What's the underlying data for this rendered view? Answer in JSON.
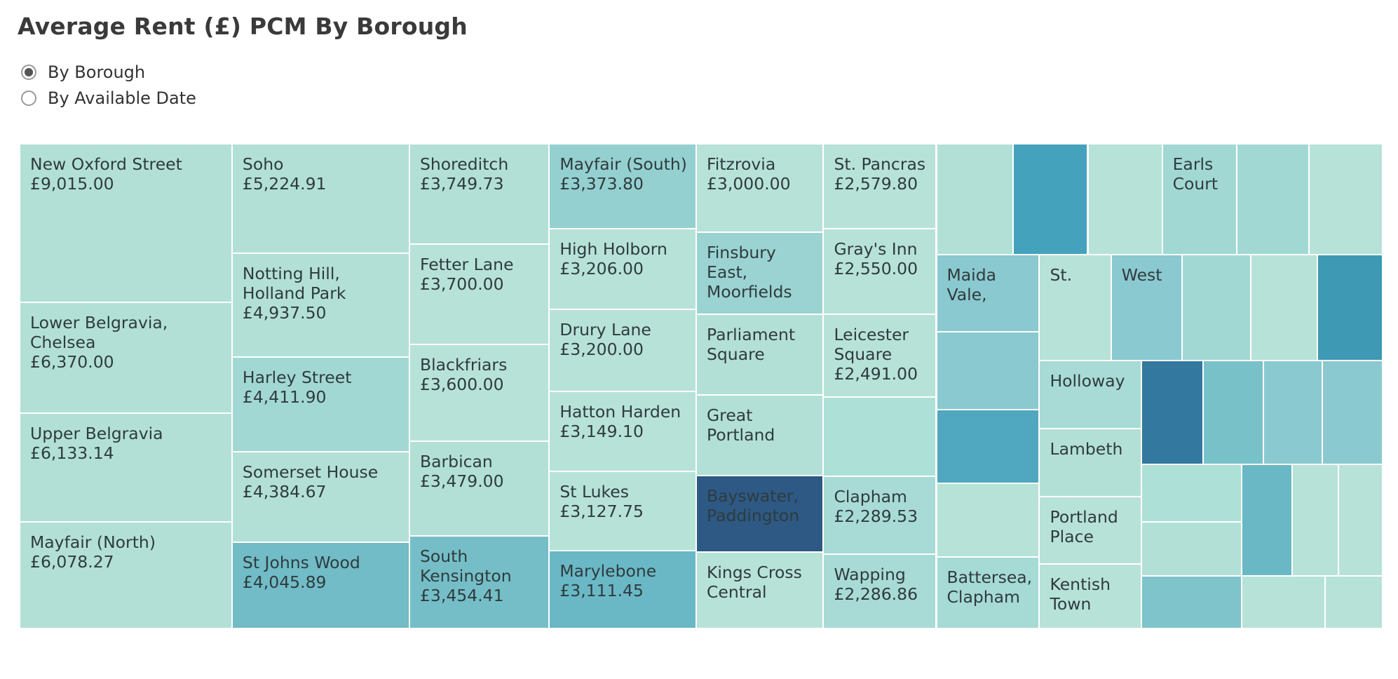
{
  "page": {
    "title": "Average Rent (£) PCM By Borough"
  },
  "view_toggle": {
    "options": [
      {
        "label": "By Borough",
        "selected": true
      },
      {
        "label": "By Available Date",
        "selected": false
      }
    ]
  },
  "chart_data": {
    "type": "treemap",
    "title": "Average Rent (£) PCM By Borough",
    "currency": "£",
    "color_scale": [
      "#bfe6dc",
      "#2d5984"
    ],
    "cells": [
      {
        "name": "New Oxford Street",
        "label": "New Oxford Street",
        "value": 9015.0,
        "value_text": "£9,015.00",
        "color": "#b2e0d6"
      },
      {
        "name": "Lower Belgravia, Chelsea",
        "label": "Lower Belgravia,\nChelsea",
        "value": 6370.0,
        "value_text": "£6,370.00",
        "color": "#b2e0d6"
      },
      {
        "name": "Upper Belgravia",
        "label": "Upper Belgravia",
        "value": 6133.14,
        "value_text": "£6,133.14",
        "color": "#b2e0d6"
      },
      {
        "name": "Mayfair (North)",
        "label": "Mayfair (North)",
        "value": 6078.27,
        "value_text": "£6,078.27",
        "color": "#b3e0d6"
      },
      {
        "name": "Soho",
        "label": "Soho",
        "value": 5224.91,
        "value_text": "£5,224.91",
        "color": "#b2e0d6"
      },
      {
        "name": "Notting Hill, Holland Park",
        "label": "Notting Hill,\nHolland Park",
        "value": 4937.5,
        "value_text": "£4,937.50",
        "color": "#b3e0d6"
      },
      {
        "name": "Harley Street",
        "label": "Harley Street",
        "value": 4411.9,
        "value_text": "£4,411.90",
        "color": "#a2d8d4"
      },
      {
        "name": "Somerset House",
        "label": "Somerset House",
        "value": 4384.67,
        "value_text": "£4,384.67",
        "color": "#b3e0d6"
      },
      {
        "name": "St Johns Wood",
        "label": "St Johns Wood",
        "value": 4045.89,
        "value_text": "£4,045.89",
        "color": "#71bcc6"
      },
      {
        "name": "Shoreditch",
        "label": "Shoreditch",
        "value": 3749.73,
        "value_text": "£3,749.73",
        "color": "#b2e0d6"
      },
      {
        "name": "Fetter Lane",
        "label": "Fetter Lane",
        "value": 3700.0,
        "value_text": "£3,700.00",
        "color": "#b7e2d8"
      },
      {
        "name": "Blackfriars",
        "label": "Blackfriars",
        "value": 3600.0,
        "value_text": "£3,600.00",
        "color": "#b7e2d8"
      },
      {
        "name": "Barbican",
        "label": "Barbican",
        "value": 3479.0,
        "value_text": "£3,479.00",
        "color": "#b2e0d6"
      },
      {
        "name": "South Kensington",
        "label": "South\nKensington",
        "value": 3454.41,
        "value_text": "£3,454.41",
        "color": "#75bec7"
      },
      {
        "name": "Mayfair (South)",
        "label": "Mayfair (South)",
        "value": 3373.8,
        "value_text": "£3,373.80",
        "color": "#95d0d0"
      },
      {
        "name": "High Holborn",
        "label": "High Holborn",
        "value": 3206.0,
        "value_text": "£3,206.00",
        "color": "#b7e2d8"
      },
      {
        "name": "Drury Lane",
        "label": "Drury Lane",
        "value": 3200.0,
        "value_text": "£3,200.00",
        "color": "#b7e2d8"
      },
      {
        "name": "Hatton Harden",
        "label": "Hatton Harden",
        "value": 3149.1,
        "value_text": "£3,149.10",
        "color": "#b7e2d8"
      },
      {
        "name": "St Lukes",
        "label": "St Lukes",
        "value": 3127.75,
        "value_text": "£3,127.75",
        "color": "#b7e2d8"
      },
      {
        "name": "Marylebone",
        "label": "Marylebone",
        "value": 3111.45,
        "value_text": "£3,111.45",
        "color": "#6ab8c5"
      },
      {
        "name": "Fitzrovia",
        "label": "Fitzrovia",
        "value": 3000.0,
        "value_text": "£3,000.00",
        "color": "#b7e2d8"
      },
      {
        "name": "Finsbury East, Moorfields",
        "label": "Finsbury\nEast,\nMoorfields",
        "value_text": "",
        "color": "#9ad3d2"
      },
      {
        "name": "Parliament Square",
        "label": "Parliament\nSquare",
        "value_text": "",
        "color": "#b3e0d6"
      },
      {
        "name": "Great Portland",
        "label": "Great\nPortland",
        "value_text": "",
        "color": "#b2e0d6"
      },
      {
        "name": "Bayswater, Paddington",
        "label": "Bayswater,\nPaddington",
        "value_text": "",
        "color": "#2d5984"
      },
      {
        "name": "Kings Cross Central",
        "label": "Kings Cross\nCentral",
        "value_text": "",
        "color": "#b7e2d8"
      },
      {
        "name": "St. Pancras",
        "label": "St. Pancras",
        "value": 2579.8,
        "value_text": "£2,579.80",
        "color": "#b7e2d8"
      },
      {
        "name": "Gray's Inn",
        "label": "Gray's Inn",
        "value": 2550.0,
        "value_text": "£2,550.00",
        "color": "#b7e2d8"
      },
      {
        "name": "Leicester Square",
        "label": "Leicester\nSquare",
        "value": 2491.0,
        "value_text": "£2,491.00",
        "color": "#b7e2d8"
      },
      {
        "name": "unlabeled-1",
        "label": "",
        "value_text": "",
        "color": "#ade0d6"
      },
      {
        "name": "Clapham",
        "label": "Clapham",
        "value": 2289.53,
        "value_text": "£2,289.53",
        "color": "#a8dbd5"
      },
      {
        "name": "Wapping",
        "label": "Wapping",
        "value": 2286.86,
        "value_text": "£2,286.86",
        "color": "#a8dbd5"
      },
      {
        "name": "unlabeled-2",
        "label": "",
        "value_text": "",
        "color": "#b2e0d6"
      },
      {
        "name": "unlabeled-3",
        "label": "",
        "value_text": "",
        "color": "#44a2bc"
      },
      {
        "name": "unlabeled-4",
        "label": "",
        "value_text": "",
        "color": "#b7e2d8"
      },
      {
        "name": "Earls Court",
        "label": "Earls\nCourt",
        "value_text": "",
        "color": "#a2d8d4"
      },
      {
        "name": "unlabeled-5",
        "label": "",
        "value_text": "",
        "color": "#a2d8d4"
      },
      {
        "name": "unlabeled-6",
        "label": "",
        "value_text": "",
        "color": "#b7e2d8"
      },
      {
        "name": "Maida Vale",
        "label": "Maida\nVale,",
        "value_text": "",
        "color": "#8ac9cf"
      },
      {
        "name": "unlabeled-7",
        "label": "",
        "value_text": "",
        "color": "#8ac9cf"
      },
      {
        "name": "unlabeled-8",
        "label": "",
        "value_text": "",
        "color": "#4fa7c0"
      },
      {
        "name": "unlabeled-9",
        "label": "",
        "value_text": "",
        "color": "#b7e2d8"
      },
      {
        "name": "Battersea, Clapham",
        "label": "Battersea,\nClapham",
        "value_text": "",
        "color": "#a6dad5"
      },
      {
        "name": "St.",
        "label": "St.",
        "value_text": "",
        "color": "#b7e2d8"
      },
      {
        "name": "West",
        "label": "West",
        "value_text": "",
        "color": "#8ac9cf"
      },
      {
        "name": "unlabeled-10",
        "label": "",
        "value_text": "",
        "color": "#a2d8d4"
      },
      {
        "name": "unlabeled-11",
        "label": "",
        "value_text": "",
        "color": "#b7e2d8"
      },
      {
        "name": "unlabeled-12",
        "label": "",
        "value_text": "",
        "color": "#3e99b5"
      },
      {
        "name": "Holloway",
        "label": "Holloway",
        "value_text": "",
        "color": "#a8dbd5"
      },
      {
        "name": "Lambeth",
        "label": "Lambeth",
        "value_text": "",
        "color": "#b3e0d6"
      },
      {
        "name": "Portland Place",
        "label": "Portland\nPlace",
        "value_text": "",
        "color": "#b7e2d8"
      },
      {
        "name": "Kentish Town",
        "label": "Kentish\nTown",
        "value_text": "",
        "color": "#b7e2d8"
      },
      {
        "name": "unlabeled-13",
        "label": "",
        "value_text": "",
        "color": "#33789e"
      },
      {
        "name": "unlabeled-14",
        "label": "",
        "value_text": "",
        "color": "#79c1c9"
      },
      {
        "name": "unlabeled-15",
        "label": "",
        "value_text": "",
        "color": "#8ac9cf"
      },
      {
        "name": "unlabeled-16",
        "label": "",
        "value_text": "",
        "color": "#8ac9cf"
      },
      {
        "name": "unlabeled-17",
        "label": "",
        "value_text": "",
        "color": "#ade0d6"
      },
      {
        "name": "unlabeled-18",
        "label": "",
        "value_text": "",
        "color": "#6ab8c6"
      },
      {
        "name": "unlabeled-19",
        "label": "",
        "value_text": "",
        "color": "#b7e2d8"
      },
      {
        "name": "unlabeled-20",
        "label": "",
        "value_text": "",
        "color": "#b7e2d8"
      },
      {
        "name": "unlabeled-21",
        "label": "",
        "value_text": "",
        "color": "#b2e0d6"
      },
      {
        "name": "unlabeled-22",
        "label": "",
        "value_text": "",
        "color": "#7fc3cb"
      },
      {
        "name": "unlabeled-23",
        "label": "",
        "value_text": "",
        "color": "#b7e2d8"
      },
      {
        "name": "unlabeled-24",
        "label": "",
        "value_text": "",
        "color": "#b7e2d8"
      }
    ]
  }
}
